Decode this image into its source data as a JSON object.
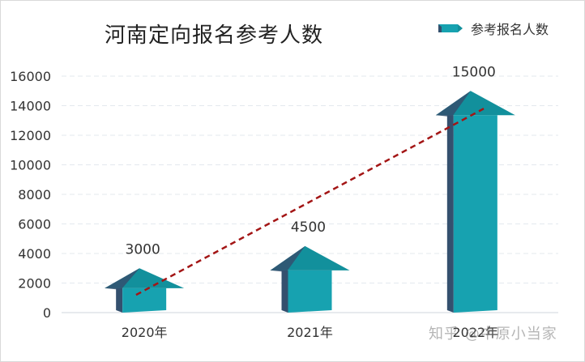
{
  "chart_data": {
    "type": "bar",
    "title": "河南定向报名参考人数",
    "categories": [
      "2020年",
      "2021年",
      "2022年"
    ],
    "series": [
      {
        "name": "参考报名人数",
        "values": [
          3000,
          4500,
          15000
        ]
      }
    ],
    "data_labels": [
      "3000",
      "4500",
      "15000"
    ],
    "trendline": {
      "type": "linear",
      "style": "dashed",
      "color": "#a31515"
    },
    "ylim": [
      0,
      16000
    ],
    "yticks": [
      0,
      2000,
      4000,
      6000,
      8000,
      10000,
      12000,
      14000,
      16000
    ],
    "ytick_labels": [
      "0",
      "2000",
      "4000",
      "6000",
      "8000",
      "10000",
      "12000",
      "14000",
      "16000"
    ],
    "grid": true,
    "legend_position": "top-right",
    "colors": {
      "bar_front": "#17a2b0",
      "bar_side": "#34506e",
      "bar_top": "#12909c",
      "trend": "#a31515",
      "grid": "#e3e8ee"
    }
  },
  "watermark": "知乎 @中原小当家"
}
